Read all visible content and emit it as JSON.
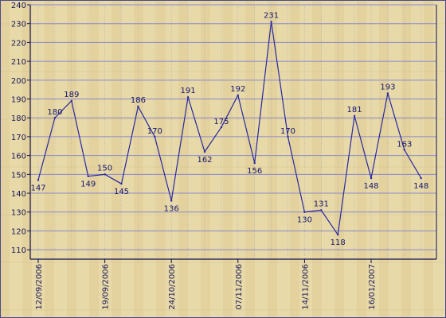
{
  "chart_data": {
    "type": "line",
    "title": "",
    "xlabel": "",
    "ylabel": "",
    "ylim": [
      105,
      240
    ],
    "y_ticks": [
      110,
      120,
      130,
      140,
      150,
      160,
      170,
      180,
      190,
      200,
      210,
      220,
      230,
      240
    ],
    "grid": true,
    "x_tick_labels": [
      "12/09/2006",
      "19/09/2006",
      "24/10/2006",
      "07/11/2006",
      "14/11/2006",
      "16/01/2007"
    ],
    "x_tick_positions": [
      0,
      4,
      8,
      12,
      16,
      20
    ],
    "series": [
      {
        "values": [
          147,
          180,
          189,
          149,
          150,
          145,
          186,
          170,
          136,
          191,
          162,
          175,
          192,
          156,
          231,
          170,
          130,
          131,
          118,
          181,
          148,
          193,
          163,
          148
        ]
      }
    ],
    "colors": {
      "line": "#2828a0",
      "grid": "#8a8ac8",
      "axis": "#101050",
      "text": "#1a1a5a",
      "background": "#e8d9a8",
      "background_stripe": "#ddc992",
      "border": "#4a4a8a"
    }
  }
}
